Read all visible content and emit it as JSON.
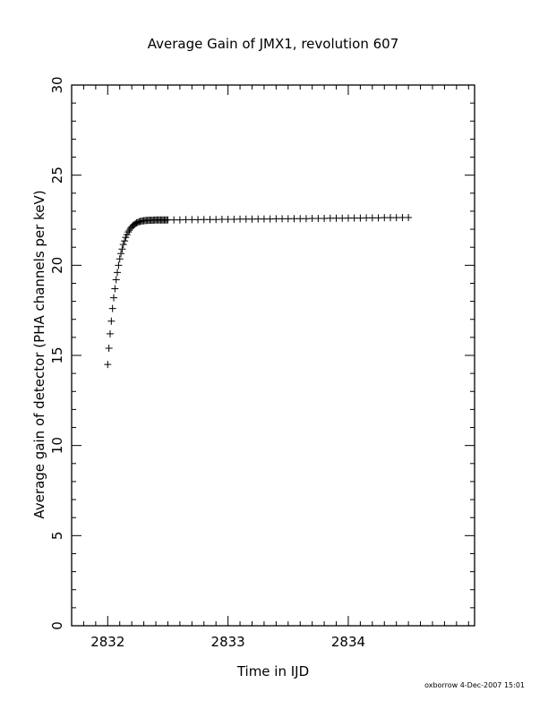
{
  "chart_data": {
    "type": "scatter",
    "title": "Average Gain of JMX1, revolution 607",
    "xlabel": "Time in IJD",
    "ylabel": "Average gain of detector (PHA channels per keV)",
    "xlim": [
      2831.7,
      2835.05
    ],
    "ylim": [
      0,
      30
    ],
    "xticks": [
      2832,
      2833,
      2834
    ],
    "yticks": [
      0,
      5,
      10,
      15,
      20,
      25,
      30
    ],
    "x_minor_step": 0.1,
    "y_minor_step": 1,
    "grid": false,
    "marker": "plus",
    "color": "#000000",
    "series": [
      {
        "x": [
          2832.0,
          2832.01,
          2832.02,
          2832.03,
          2832.04,
          2832.05,
          2832.06,
          2832.07,
          2832.08,
          2832.09,
          2832.1,
          2832.11,
          2832.12,
          2832.13,
          2832.14,
          2832.15,
          2832.16,
          2832.17,
          2832.18,
          2832.19,
          2832.2,
          2832.21,
          2832.22,
          2832.23,
          2832.24,
          2832.25,
          2832.26,
          2832.27,
          2832.28,
          2832.29,
          2832.3,
          2832.31,
          2832.32,
          2832.33,
          2832.34,
          2832.35,
          2832.36,
          2832.37,
          2832.38,
          2832.39,
          2832.4,
          2832.41,
          2832.42,
          2832.43,
          2832.44,
          2832.45,
          2832.46,
          2832.47,
          2832.48,
          2832.49,
          2832.5,
          2832.55,
          2832.6,
          2832.65,
          2832.7,
          2832.75,
          2832.8,
          2832.85,
          2832.9,
          2832.95,
          2833.0,
          2833.05,
          2833.1,
          2833.15,
          2833.2,
          2833.25,
          2833.3,
          2833.35,
          2833.4,
          2833.45,
          2833.5,
          2833.55,
          2833.6,
          2833.65,
          2833.7,
          2833.75,
          2833.8,
          2833.85,
          2833.9,
          2833.95,
          2834.0,
          2834.05,
          2834.1,
          2834.15,
          2834.2,
          2834.25,
          2834.3,
          2834.35,
          2834.4,
          2834.45,
          2834.5
        ],
        "y": [
          14.5,
          15.4,
          16.2,
          16.9,
          17.6,
          18.2,
          18.7,
          19.2,
          19.6,
          20.0,
          20.35,
          20.65,
          20.9,
          21.15,
          21.35,
          21.55,
          21.7,
          21.85,
          21.95,
          22.05,
          22.13,
          22.2,
          22.26,
          22.31,
          22.35,
          22.38,
          22.41,
          22.43,
          22.45,
          22.46,
          22.47,
          22.48,
          22.49,
          22.49,
          22.5,
          22.5,
          22.5,
          22.5,
          22.5,
          22.51,
          22.51,
          22.51,
          22.51,
          22.51,
          22.51,
          22.51,
          22.51,
          22.51,
          22.51,
          22.51,
          22.52,
          22.52,
          22.52,
          22.53,
          22.53,
          22.53,
          22.54,
          22.54,
          22.54,
          22.55,
          22.55,
          22.55,
          22.56,
          22.56,
          22.56,
          22.57,
          22.57,
          22.57,
          22.58,
          22.58,
          22.58,
          22.59,
          22.59,
          22.59,
          22.6,
          22.6,
          22.6,
          22.61,
          22.61,
          22.61,
          22.62,
          22.62,
          22.62,
          22.63,
          22.63,
          22.63,
          22.64,
          22.64,
          22.64,
          22.65,
          22.65
        ]
      }
    ]
  },
  "footer": {
    "credit": "oxborrow  4-Dec-2007 15:01"
  }
}
